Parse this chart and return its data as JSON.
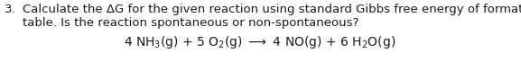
{
  "background_color": "#ffffff",
  "question_number": "3.",
  "line1": "Calculate the ΔG for the given reaction using standard Gibbs free energy of formation on the",
  "line2": "table. Is the reaction spontaneous or non-spontaneous?",
  "equation": "4 NH$_{3}$(g) + 5 O$_{2}$(g) → 4 NO(g) + 6 H$_{2}$O(g)",
  "font_size_text": 9.5,
  "font_size_eq": 10.0,
  "text_color": "#1a1a1a",
  "num_color": "#1a1a1a"
}
